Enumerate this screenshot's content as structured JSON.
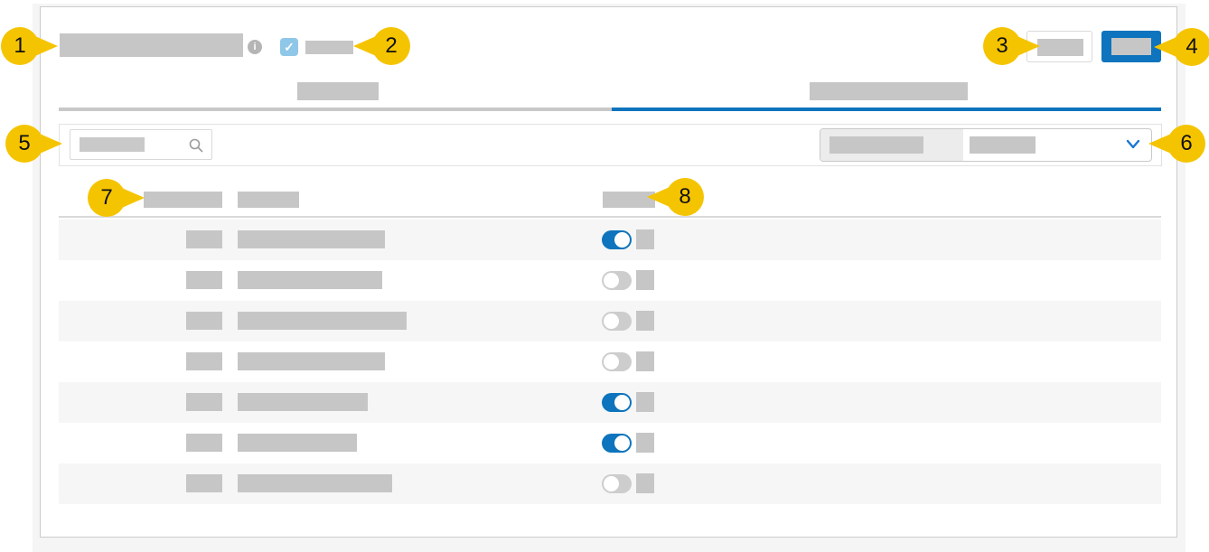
{
  "colors": {
    "accent_blue": "#0d74bd",
    "callout_yellow": "#f5c400",
    "checkbox_blue": "#8fc7e8",
    "redaction_gray": "#c6c6c6",
    "toggle_off_gray": "#cdcdcd",
    "chevron_blue": "#1976d2",
    "row_stripe": "#f5f6f5"
  },
  "header": {
    "checkbox_checked": true,
    "check_glyph": "✓",
    "info_glyph": "i"
  },
  "tabs": {
    "count": 2,
    "active": "tab-2"
  },
  "table": {
    "rows": [
      {
        "enabled": true,
        "name_bar_width": 163
      },
      {
        "enabled": false,
        "name_bar_width": 160
      },
      {
        "enabled": false,
        "name_bar_width": 187
      },
      {
        "enabled": false,
        "name_bar_width": 163
      },
      {
        "enabled": true,
        "name_bar_width": 144
      },
      {
        "enabled": true,
        "name_bar_width": 132
      },
      {
        "enabled": false,
        "name_bar_width": 171
      }
    ]
  },
  "annotation": {
    "callouts": [
      {
        "number": "1",
        "points_to": "page-title"
      },
      {
        "number": "2",
        "points_to": "header-checkbox"
      },
      {
        "number": "3",
        "points_to": "secondary-button"
      },
      {
        "number": "4",
        "points_to": "primary-button"
      },
      {
        "number": "5",
        "points_to": "search-input"
      },
      {
        "number": "6",
        "points_to": "filter-dropdown"
      },
      {
        "number": "7",
        "points_to": "table-column-1-header"
      },
      {
        "number": "8",
        "points_to": "toggle-column-header"
      }
    ]
  }
}
